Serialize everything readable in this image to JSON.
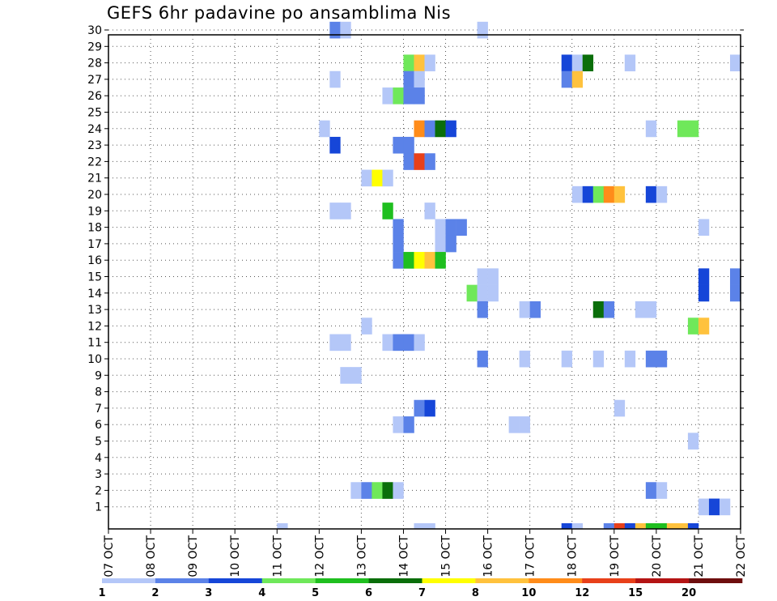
{
  "title": "GEFS 6hr padavine po ansamblima Nis",
  "chart_data": {
    "type": "heatmap",
    "title": "GEFS 6hr padavine po ansamblima Nis",
    "x_tick_labels": [
      "07 OCT",
      "08 OCT",
      "09 OCT",
      "10 OCT",
      "11 OCT",
      "12 OCT",
      "13 OCT",
      "14 OCT",
      "15 OCT",
      "16 OCT",
      "17 OCT",
      "18 OCT",
      "19 OCT",
      "20 OCT",
      "21 OCT",
      "22 OCT"
    ],
    "y_tick_labels": [
      "1",
      "2",
      "3",
      "4",
      "5",
      "6",
      "7",
      "8",
      "9",
      "10",
      "11",
      "12",
      "13",
      "14",
      "15",
      "16",
      "17",
      "18",
      "19",
      "20",
      "21",
      "22",
      "23",
      "24",
      "25",
      "26",
      "27",
      "28",
      "29",
      "30"
    ],
    "x_step_hours": 6,
    "grid": true,
    "colorbar": {
      "labels": [
        "1",
        "2",
        "3",
        "4",
        "5",
        "6",
        "7",
        "8",
        "10",
        "12",
        "15",
        "20"
      ],
      "colors": [
        "#b4c7f8",
        "#5b82e8",
        "#1646d8",
        "#6fe85a",
        "#1fbf1f",
        "#0a6e0a",
        "#ffff00",
        "#ffc23d",
        "#ff8c1a",
        "#e8401a",
        "#b41414",
        "#6e0e0e"
      ]
    },
    "cells": [
      {
        "time": "12 OCT 06",
        "member": 30,
        "cat": 2
      },
      {
        "time": "12 OCT 12",
        "member": 30,
        "cat": 1
      },
      {
        "time": "15 OCT 18",
        "member": 30,
        "cat": 1
      },
      {
        "time": "14 OCT 00",
        "member": 28,
        "cat": 4
      },
      {
        "time": "14 OCT 06",
        "member": 28,
        "cat": 8
      },
      {
        "time": "14 OCT 12",
        "member": 28,
        "cat": 1
      },
      {
        "time": "17 OCT 18",
        "member": 28,
        "cat": 3
      },
      {
        "time": "18 OCT 00",
        "member": 28,
        "cat": 1
      },
      {
        "time": "18 OCT 06",
        "member": 28,
        "cat": 6
      },
      {
        "time": "19 OCT 06",
        "member": 28,
        "cat": 1
      },
      {
        "time": "21 OCT 18",
        "member": 28,
        "cat": 1
      },
      {
        "time": "12 OCT 06",
        "member": 27,
        "cat": 1
      },
      {
        "time": "14 OCT 00",
        "member": 27,
        "cat": 2
      },
      {
        "time": "14 OCT 06",
        "member": 27,
        "cat": 1
      },
      {
        "time": "17 OCT 18",
        "member": 27,
        "cat": 2
      },
      {
        "time": "18 OCT 00",
        "member": 27,
        "cat": 8
      },
      {
        "time": "13 OCT 12",
        "member": 26,
        "cat": 1
      },
      {
        "time": "13 OCT 18",
        "member": 26,
        "cat": 4
      },
      {
        "time": "14 OCT 00",
        "member": 26,
        "cat": 2
      },
      {
        "time": "14 OCT 06",
        "member": 26,
        "cat": 2
      },
      {
        "time": "12 OCT 00",
        "member": 24,
        "cat": 1
      },
      {
        "time": "14 OCT 06",
        "member": 24,
        "cat": 9
      },
      {
        "time": "14 OCT 12",
        "member": 24,
        "cat": 2
      },
      {
        "time": "14 OCT 18",
        "member": 24,
        "cat": 6
      },
      {
        "time": "15 OCT 00",
        "member": 24,
        "cat": 3
      },
      {
        "time": "19 OCT 18",
        "member": 24,
        "cat": 1
      },
      {
        "time": "20 OCT 12",
        "member": 24,
        "cat": 4
      },
      {
        "time": "20 OCT 18",
        "member": 24,
        "cat": 4
      },
      {
        "time": "12 OCT 06",
        "member": 23,
        "cat": 3
      },
      {
        "time": "13 OCT 18",
        "member": 23,
        "cat": 2
      },
      {
        "time": "14 OCT 00",
        "member": 23,
        "cat": 2
      },
      {
        "time": "14 OCT 00",
        "member": 22,
        "cat": 2
      },
      {
        "time": "14 OCT 06",
        "member": 22,
        "cat": 10
      },
      {
        "time": "14 OCT 12",
        "member": 22,
        "cat": 2
      },
      {
        "time": "13 OCT 00",
        "member": 21,
        "cat": 1
      },
      {
        "time": "13 OCT 06",
        "member": 21,
        "cat": 7
      },
      {
        "time": "13 OCT 12",
        "member": 21,
        "cat": 1
      },
      {
        "time": "18 OCT 00",
        "member": 20,
        "cat": 1
      },
      {
        "time": "18 OCT 06",
        "member": 20,
        "cat": 3
      },
      {
        "time": "18 OCT 12",
        "member": 20,
        "cat": 4
      },
      {
        "time": "18 OCT 18",
        "member": 20,
        "cat": 9
      },
      {
        "time": "19 OCT 00",
        "member": 20,
        "cat": 8
      },
      {
        "time": "19 OCT 18",
        "member": 20,
        "cat": 3
      },
      {
        "time": "20 OCT 00",
        "member": 20,
        "cat": 1
      },
      {
        "time": "12 OCT 06",
        "member": 19,
        "cat": 1
      },
      {
        "time": "12 OCT 12",
        "member": 19,
        "cat": 1
      },
      {
        "time": "13 OCT 12",
        "member": 19,
        "cat": 5
      },
      {
        "time": "14 OCT 12",
        "member": 19,
        "cat": 1
      },
      {
        "time": "13 OCT 18",
        "member": 18,
        "cat": 2
      },
      {
        "time": "14 OCT 18",
        "member": 18,
        "cat": 1
      },
      {
        "time": "15 OCT 00",
        "member": 18,
        "cat": 2
      },
      {
        "time": "15 OCT 06",
        "member": 18,
        "cat": 2
      },
      {
        "time": "21 OCT 00",
        "member": 18,
        "cat": 1
      },
      {
        "time": "13 OCT 18",
        "member": 17,
        "cat": 2
      },
      {
        "time": "14 OCT 18",
        "member": 17,
        "cat": 1
      },
      {
        "time": "15 OCT 00",
        "member": 17,
        "cat": 2
      },
      {
        "time": "13 OCT 18",
        "member": 16,
        "cat": 2
      },
      {
        "time": "14 OCT 00",
        "member": 16,
        "cat": 5
      },
      {
        "time": "14 OCT 06",
        "member": 16,
        "cat": 7
      },
      {
        "time": "14 OCT 12",
        "member": 16,
        "cat": 8
      },
      {
        "time": "14 OCT 18",
        "member": 16,
        "cat": 5
      },
      {
        "time": "15 OCT 18",
        "member": 15,
        "cat": 1
      },
      {
        "time": "16 OCT 00",
        "member": 15,
        "cat": 1
      },
      {
        "time": "21 OCT 00",
        "member": 15,
        "cat": 3
      },
      {
        "time": "21 OCT 18",
        "member": 15,
        "cat": 2
      },
      {
        "time": "15 OCT 12",
        "member": 14,
        "cat": 4
      },
      {
        "time": "15 OCT 18",
        "member": 14,
        "cat": 1
      },
      {
        "time": "16 OCT 00",
        "member": 14,
        "cat": 1
      },
      {
        "time": "21 OCT 00",
        "member": 14,
        "cat": 3
      },
      {
        "time": "21 OCT 18",
        "member": 14,
        "cat": 2
      },
      {
        "time": "15 OCT 18",
        "member": 13,
        "cat": 2
      },
      {
        "time": "16 OCT 18",
        "member": 13,
        "cat": 1
      },
      {
        "time": "17 OCT 00",
        "member": 13,
        "cat": 2
      },
      {
        "time": "18 OCT 12",
        "member": 13,
        "cat": 6
      },
      {
        "time": "18 OCT 18",
        "member": 13,
        "cat": 2
      },
      {
        "time": "19 OCT 12",
        "member": 13,
        "cat": 1
      },
      {
        "time": "19 OCT 18",
        "member": 13,
        "cat": 1
      },
      {
        "time": "13 OCT 00",
        "member": 12,
        "cat": 1
      },
      {
        "time": "20 OCT 18",
        "member": 12,
        "cat": 4
      },
      {
        "time": "21 OCT 00",
        "member": 12,
        "cat": 8
      },
      {
        "time": "12 OCT 06",
        "member": 11,
        "cat": 1
      },
      {
        "time": "12 OCT 12",
        "member": 11,
        "cat": 1
      },
      {
        "time": "13 OCT 12",
        "member": 11,
        "cat": 1
      },
      {
        "time": "13 OCT 18",
        "member": 11,
        "cat": 2
      },
      {
        "time": "14 OCT 00",
        "member": 11,
        "cat": 2
      },
      {
        "time": "14 OCT 06",
        "member": 11,
        "cat": 1
      },
      {
        "time": "15 OCT 18",
        "member": 10,
        "cat": 2
      },
      {
        "time": "16 OCT 18",
        "member": 10,
        "cat": 1
      },
      {
        "time": "17 OCT 18",
        "member": 10,
        "cat": 1
      },
      {
        "time": "18 OCT 12",
        "member": 10,
        "cat": 1
      },
      {
        "time": "19 OCT 06",
        "member": 10,
        "cat": 1
      },
      {
        "time": "19 OCT 18",
        "member": 10,
        "cat": 2
      },
      {
        "time": "20 OCT 00",
        "member": 10,
        "cat": 2
      },
      {
        "time": "12 OCT 12",
        "member": 9,
        "cat": 1
      },
      {
        "time": "12 OCT 18",
        "member": 9,
        "cat": 1
      },
      {
        "time": "14 OCT 06",
        "member": 7,
        "cat": 2
      },
      {
        "time": "14 OCT 12",
        "member": 7,
        "cat": 3
      },
      {
        "time": "19 OCT 00",
        "member": 7,
        "cat": 1
      },
      {
        "time": "13 OCT 18",
        "member": 6,
        "cat": 1
      },
      {
        "time": "14 OCT 00",
        "member": 6,
        "cat": 2
      },
      {
        "time": "16 OCT 12",
        "member": 6,
        "cat": 1
      },
      {
        "time": "16 OCT 18",
        "member": 6,
        "cat": 1
      },
      {
        "time": "20 OCT 18",
        "member": 5,
        "cat": 1
      },
      {
        "time": "12 OCT 18",
        "member": 2,
        "cat": 1
      },
      {
        "time": "13 OCT 00",
        "member": 2,
        "cat": 2
      },
      {
        "time": "13 OCT 06",
        "member": 2,
        "cat": 4
      },
      {
        "time": "13 OCT 12",
        "member": 2,
        "cat": 6
      },
      {
        "time": "13 OCT 18",
        "member": 2,
        "cat": 1
      },
      {
        "time": "19 OCT 18",
        "member": 2,
        "cat": 2
      },
      {
        "time": "20 OCT 00",
        "member": 2,
        "cat": 1
      },
      {
        "time": "21 OCT 00",
        "member": 1,
        "cat": 1
      },
      {
        "time": "21 OCT 06",
        "member": 1,
        "cat": 3
      },
      {
        "time": "21 OCT 12",
        "member": 1,
        "cat": 1
      },
      {
        "time": "11 OCT 00",
        "member": 0,
        "cat": 1
      },
      {
        "time": "14 OCT 06",
        "member": 0,
        "cat": 1
      },
      {
        "time": "14 OCT 12",
        "member": 0,
        "cat": 1
      },
      {
        "time": "17 OCT 18",
        "member": 0,
        "cat": 3
      },
      {
        "time": "18 OCT 00",
        "member": 0,
        "cat": 1
      },
      {
        "time": "18 OCT 18",
        "member": 0,
        "cat": 2
      },
      {
        "time": "19 OCT 00",
        "member": 0,
        "cat": 10
      },
      {
        "time": "19 OCT 06",
        "member": 0,
        "cat": 3
      },
      {
        "time": "19 OCT 12",
        "member": 0,
        "cat": 8
      },
      {
        "time": "19 OCT 18",
        "member": 0,
        "cat": 5
      },
      {
        "time": "20 OCT 00",
        "member": 0,
        "cat": 5
      },
      {
        "time": "20 OCT 06",
        "member": 0,
        "cat": 8
      },
      {
        "time": "20 OCT 12",
        "member": 0,
        "cat": 8
      },
      {
        "time": "20 OCT 18",
        "member": 0,
        "cat": 3
      }
    ]
  }
}
